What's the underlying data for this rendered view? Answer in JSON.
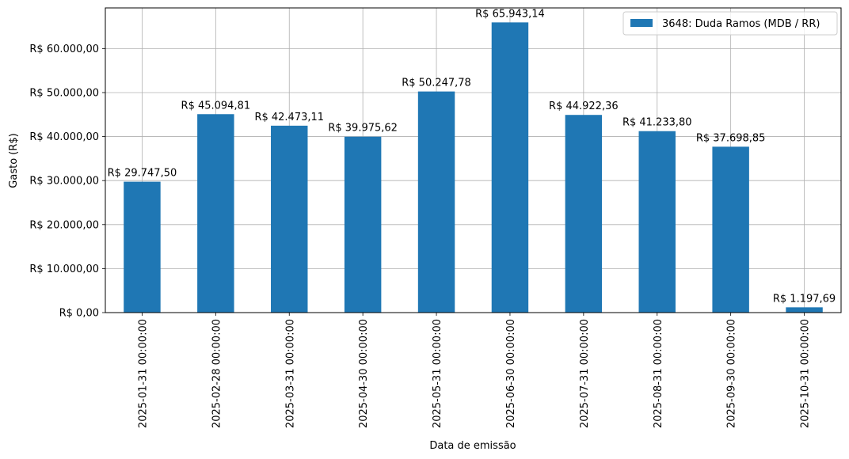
{
  "chart_data": {
    "type": "bar",
    "title": "",
    "xlabel": "Data de emissão",
    "ylabel": "Gasto (R$)",
    "categories": [
      "2025-01-31 00:00:00",
      "2025-02-28 00:00:00",
      "2025-03-31 00:00:00",
      "2025-04-30 00:00:00",
      "2025-05-31 00:00:00",
      "2025-06-30 00:00:00",
      "2025-07-31 00:00:00",
      "2025-08-31 00:00:00",
      "2025-09-30 00:00:00",
      "2025-10-31 00:00:00"
    ],
    "series": [
      {
        "name": "3648: Duda Ramos (MDB / RR)",
        "color": "#1f77b4",
        "values": [
          29747.5,
          45094.81,
          42473.11,
          39975.62,
          50247.78,
          65943.14,
          44922.36,
          41233.8,
          37698.85,
          1197.69
        ]
      }
    ],
    "data_labels": [
      "R$ 29.747,50",
      "R$ 45.094,81",
      "R$ 42.473,11",
      "R$ 39.975,62",
      "R$ 50.247,78",
      "R$ 65.943,14",
      "R$ 44.922,36",
      "R$ 41.233,80",
      "R$ 37.698,85",
      "R$ 1.197,69"
    ],
    "yticks": [
      0,
      10000,
      20000,
      30000,
      40000,
      50000,
      60000
    ],
    "ytick_labels": [
      "R$ 0,00",
      "R$ 10.000,00",
      "R$ 20.000,00",
      "R$ 30.000,00",
      "R$ 40.000,00",
      "R$ 50.000,00",
      "R$ 60.000,00"
    ],
    "ylim": [
      0,
      69240
    ],
    "grid": true,
    "legend_position": "top-right"
  }
}
